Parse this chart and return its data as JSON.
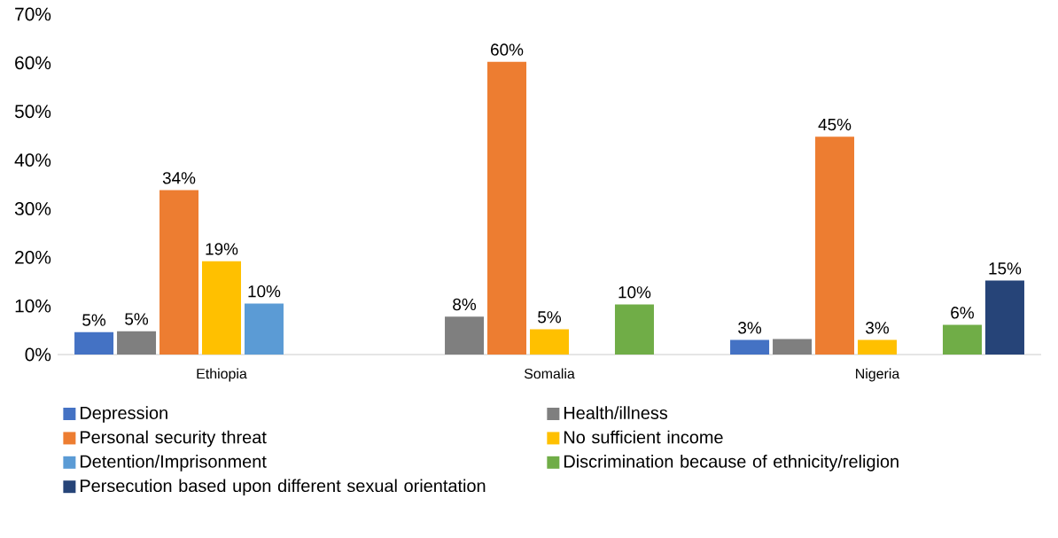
{
  "chart_data": {
    "type": "bar",
    "categories": [
      "Ethiopia",
      "Somalia",
      "Nigeria"
    ],
    "series": [
      {
        "name": "Depression",
        "color": "#4472c4",
        "values": [
          4.6,
          null,
          3.0
        ],
        "value_labels": [
          "5%",
          null,
          "3%"
        ]
      },
      {
        "name": "Health/illness",
        "color": "#7f7f7f",
        "values": [
          4.8,
          7.8,
          3.2
        ],
        "value_labels": [
          "5%",
          "8%",
          null
        ]
      },
      {
        "name": "Personal security threat",
        "color": "#ed7d31",
        "values": [
          33.8,
          60.2,
          44.8
        ],
        "value_labels": [
          "34%",
          "60%",
          "45%"
        ]
      },
      {
        "name": "No sufficient income",
        "color": "#ffc000",
        "values": [
          19.2,
          5.2,
          3.0
        ],
        "value_labels": [
          "19%",
          "5%",
          "3%"
        ]
      },
      {
        "name": "Detention/Imprisonment",
        "color": "#5b9bd5",
        "values": [
          10.5,
          null,
          null
        ],
        "value_labels": [
          "10%",
          null,
          null
        ]
      },
      {
        "name": "Discrimination because of ethnicity/religion",
        "color": "#70ad47",
        "values": [
          null,
          10.3,
          6.1
        ],
        "value_labels": [
          null,
          "10%",
          "6%"
        ]
      },
      {
        "name": "Persecution based upon different sexual orientation",
        "color": "#264478",
        "values": [
          null,
          null,
          15.2
        ],
        "value_labels": [
          null,
          null,
          "15%"
        ]
      }
    ],
    "ylim": [
      0,
      70
    ],
    "yticks": [
      {
        "value": 0,
        "label": "0%"
      },
      {
        "value": 10,
        "label": "10%"
      },
      {
        "value": 20,
        "label": "20%"
      },
      {
        "value": 30,
        "label": "30%"
      },
      {
        "value": 40,
        "label": "40%"
      },
      {
        "value": 50,
        "label": "50%"
      },
      {
        "value": 60,
        "label": "60%"
      },
      {
        "value": 70,
        "label": "70%"
      }
    ],
    "grid": false,
    "legend": "bottom"
  }
}
